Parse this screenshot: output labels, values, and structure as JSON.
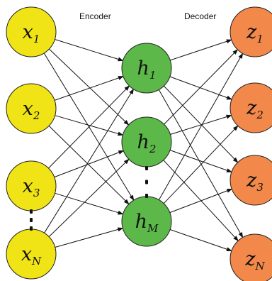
{
  "colors": {
    "input": "#f0e416",
    "hidden": "#5cb848",
    "output": "#f2884a",
    "edge": "#111111"
  },
  "headers": {
    "encoder": "Encoder",
    "decoder": "Decoder"
  },
  "input_nodes": [
    {
      "base": "x",
      "sub": "1"
    },
    {
      "base": "x",
      "sub": "2"
    },
    {
      "base": "x",
      "sub": "3"
    },
    {
      "base": "x",
      "sub": "N"
    }
  ],
  "hidden_nodes": [
    {
      "base": "h",
      "sub": "1"
    },
    {
      "base": "h",
      "sub": "2"
    },
    {
      "base": "h",
      "sub": "M"
    }
  ],
  "output_nodes": [
    {
      "base": "z",
      "sub": "1"
    },
    {
      "base": "z",
      "sub": "2"
    },
    {
      "base": "z",
      "sub": "3"
    },
    {
      "base": "z",
      "sub": "N"
    }
  ],
  "ellipsis_glyph": "⋮"
}
